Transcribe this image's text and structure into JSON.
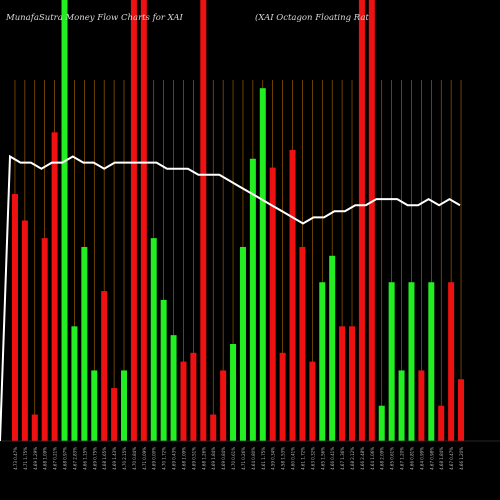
{
  "chart_data": {
    "type": "bar",
    "title": "MunafaSutra Money Flow Charts for XAI",
    "subtitle": "(XAI Octagon Floating Rat",
    "colors": {
      "up": "#22ee22",
      "down": "#ee1111",
      "line": "#ffffff",
      "grid": "#b36b00",
      "background": "#000000"
    },
    "categories": [
      "4.73 0.47%",
      "4.71 1.75%",
      "4.69 1.29%",
      "4.68 1.09%",
      "4.67 0.21%",
      "4.68 0.97%",
      "4.67 2.83%",
      "4.66 1.15%",
      "4.69 0.75%",
      "4.68 1.65%",
      "4.69 1.43%",
      "4.70 2.15%",
      "4.70 0.84%",
      "4.71 0.09%",
      "4.69 0.00%",
      "4.70 1.72%",
      "4.69 0.43%",
      "4.68 1.09%",
      "4.69 0.51%",
      "4.68 1.26%",
      "4.69 1.84%",
      "4.69 0.84%",
      "4.70 0.61%",
      "4.71 0.26%",
      "4.64 0.80%",
      "4.61 1.75%",
      "4.59 0.34%",
      "4.58 1.53%",
      "4.60 0.41%",
      "4.61 1.72%",
      "4.63 0.32%",
      "4.65 1.56%",
      "4.66 0.41%",
      "4.67 1.36%",
      "4.68 2.12%",
      "4.66 2.48%",
      "4.64 1.06%",
      "4.68 2.09%",
      "4.65 0.61%",
      "4.67 1.20%",
      "4.66 0.81%",
      "4.64 0.99%",
      "4.67 0.98%",
      "4.68 1.84%",
      "4.67 0.47%",
      "4.66 1.20%"
    ],
    "bar_colors": [
      "red",
      "red",
      "red",
      "red",
      "red",
      "green",
      "green",
      "green",
      "green",
      "red",
      "red",
      "green",
      "red",
      "red",
      "green",
      "green",
      "green",
      "red",
      "red",
      "red",
      "red",
      "red",
      "green",
      "green",
      "green",
      "green",
      "red",
      "red",
      "red",
      "red",
      "red",
      "green",
      "green",
      "red",
      "red",
      "red",
      "red",
      "green",
      "green",
      "green",
      "green",
      "red",
      "green",
      "red",
      "red",
      "red"
    ],
    "values": [
      28,
      25,
      3,
      23,
      35,
      50,
      13,
      22,
      8,
      17,
      6,
      8,
      50,
      50,
      23,
      16,
      12,
      9,
      10,
      50,
      3,
      8,
      11,
      22,
      32,
      40,
      31,
      10,
      33,
      22,
      9,
      18,
      21,
      13,
      13,
      50,
      50,
      4,
      18,
      8,
      18,
      8,
      18,
      4,
      18,
      7
    ],
    "price_line": [
      4.72,
      4.71,
      4.71,
      4.7,
      4.71,
      4.71,
      4.72,
      4.71,
      4.71,
      4.7,
      4.71,
      4.71,
      4.71,
      4.71,
      4.71,
      4.7,
      4.7,
      4.7,
      4.69,
      4.69,
      4.69,
      4.68,
      4.67,
      4.66,
      4.65,
      4.64,
      4.63,
      4.62,
      4.61,
      4.62,
      4.62,
      4.63,
      4.63,
      4.64,
      4.64,
      4.65,
      4.65,
      4.65,
      4.64,
      4.64,
      4.65,
      4.64,
      4.65,
      4.64
    ],
    "ylim": [
      0,
      50
    ]
  }
}
